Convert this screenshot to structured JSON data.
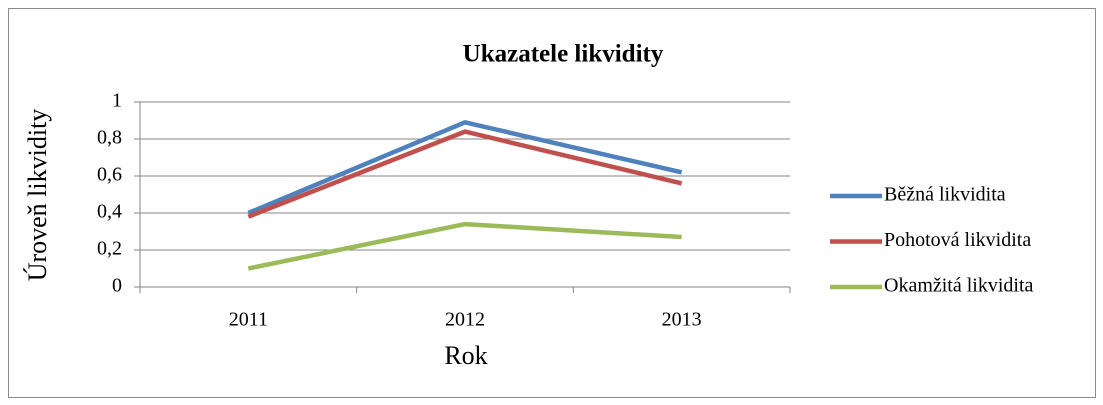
{
  "chart_data": {
    "type": "line",
    "title": "Ukazatele likvidity",
    "x_label": "Rok",
    "y_label": "Úroveň likvidity",
    "categories": [
      "2011",
      "2012",
      "2013"
    ],
    "series": [
      {
        "name": "Běžná likvidita",
        "color": "#4f81bd",
        "values": [
          0.4,
          0.89,
          0.62
        ]
      },
      {
        "name": "Pohotová likvidita",
        "color": "#c0504d",
        "values": [
          0.38,
          0.84,
          0.56
        ]
      },
      {
        "name": "Okamžitá likvidita",
        "color": "#9bbb59",
        "values": [
          0.1,
          0.34,
          0.27
        ]
      }
    ],
    "ylim": [
      0,
      1
    ],
    "yticks": [
      0,
      {
        "value": 0.2,
        "label": "0,2"
      },
      {
        "value": 0.4,
        "label": "0,4"
      },
      {
        "value": 0.6,
        "label": "0,6"
      },
      {
        "value": 0.8,
        "label": "0,8"
      },
      1
    ],
    "grid": true,
    "legend": "right"
  }
}
